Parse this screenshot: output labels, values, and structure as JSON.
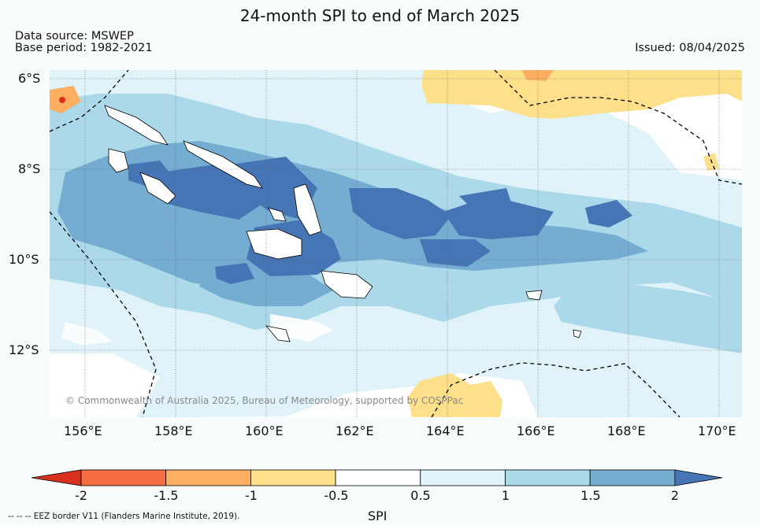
{
  "title": "24-month SPI to end of March 2025",
  "data_source": "Data source: MSWEP",
  "base_period": "Base period: 1982-2021",
  "issued": "Issued: 08/04/2025",
  "lat_labels": [
    "6°S",
    "8°S",
    "10°S",
    "12°S"
  ],
  "lon_labels": [
    "156°E",
    "158°E",
    "160°E",
    "162°E",
    "164°E",
    "166°E",
    "168°E",
    "170°E"
  ],
  "copyright": "© Commonwealth of Australia 2025, Bureau of Meteorology, supported by COSPPac",
  "colorbar": {
    "ticks": [
      "-2",
      "-1.5",
      "-1",
      "-0.5",
      "0.5",
      "1",
      "1.5",
      "2"
    ],
    "label": "SPI",
    "colors": [
      "#d7301f",
      "#f46d43",
      "#fdae61",
      "#fee08b",
      "#ffffff",
      "#e0f3f8",
      "#abd9e9",
      "#74add1",
      "#4575b4"
    ]
  },
  "eez_legend": "--  --  -- EEZ border V11 (Flanders Marine Institute, 2019)."
}
